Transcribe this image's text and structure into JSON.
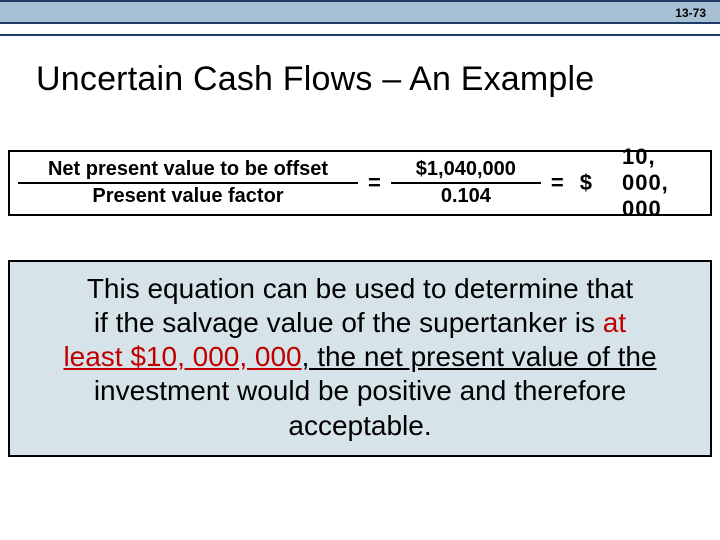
{
  "meta": {
    "page_label": "13-73"
  },
  "title": "Uncertain Cash Flows – An Example",
  "equation": {
    "label_numerator": "Net present value to be offset",
    "label_denominator": "Present value factor",
    "value_numerator": "$1,040,000",
    "value_denominator": "0.104",
    "equals_symbol": "=",
    "result_currency": "$",
    "result_value": "10, 000, 000"
  },
  "callout": {
    "line1_pre": "This equation can be used to determine that",
    "line2_pre": "if the salvage value of the supertanker is",
    "line2_emph": "at",
    "line3_emph": "least $10, 000, 000",
    "line3_post": ", the net present value of the",
    "line4": "investment would be positive and therefore",
    "line5": "acceptable."
  },
  "colors": {
    "topbar_bg": "#a7c0d4",
    "topbar_border": "#1f3b66",
    "callout_bg": "#d6e4ea",
    "emph_text": "#c00000",
    "text": "#000000",
    "page_bg": "#ffffff"
  }
}
